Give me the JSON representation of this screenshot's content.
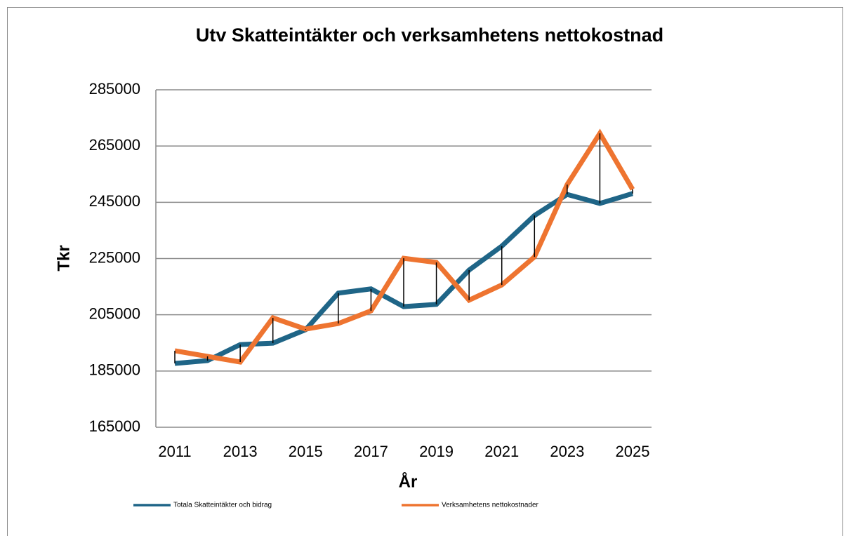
{
  "chart_data": {
    "type": "line",
    "title": "Utv Skatteintäkter och verksamhetens nettokostnad",
    "xlabel": "År",
    "ylabel": "Tkr",
    "x": [
      2011,
      2012,
      2013,
      2014,
      2015,
      2016,
      2017,
      2018,
      2019,
      2020,
      2021,
      2022,
      2023,
      2024,
      2025
    ],
    "series": [
      {
        "name": "Totala Skatteintäkter och bidrag",
        "color": "#1f6587",
        "values": [
          187700,
          188700,
          194400,
          194900,
          199700,
          212700,
          214200,
          207900,
          208700,
          220900,
          229400,
          240300,
          247800,
          244600,
          248100
        ]
      },
      {
        "name": "Verksamhetens nettokostnader",
        "color": "#ee7430",
        "values": [
          192200,
          190200,
          188200,
          203900,
          199900,
          201900,
          206400,
          225100,
          223600,
          210200,
          215600,
          225600,
          251300,
          269500,
          249600
        ]
      }
    ],
    "xlim": [
      2011,
      2025
    ],
    "xticks": [
      2011,
      2013,
      2015,
      2017,
      2019,
      2021,
      2023,
      2025
    ],
    "ylim": [
      165000,
      285000
    ],
    "yticks": [
      165000,
      185000,
      205000,
      225000,
      245000,
      265000,
      285000
    ],
    "grid": true,
    "drop_lines": true,
    "legend": "bottom"
  }
}
